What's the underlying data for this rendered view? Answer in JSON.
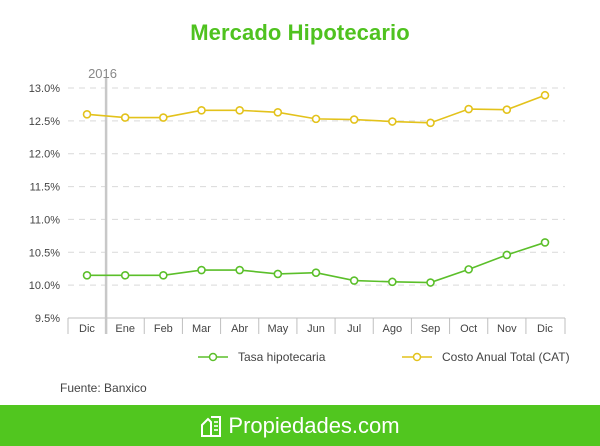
{
  "colors": {
    "accent": "#4fc21f",
    "footer": "#51c61f",
    "tasa": "#5bbf2a",
    "cat": "#e3c21b",
    "grid": "#d9d9d9",
    "axis": "#bfbfbf"
  },
  "brand": {
    "name": "Propiedades.com",
    "icon": "house-document-icon"
  },
  "source": "Fuente: Banxico",
  "chart_data": {
    "type": "line",
    "title": "Mercado Hipotecario",
    "categories": [
      "Dic",
      "Ene",
      "Feb",
      "Mar",
      "Abr",
      "May",
      "Jun",
      "Jul",
      "Ago",
      "Sep",
      "Oct",
      "Nov",
      "Dic"
    ],
    "ylim": [
      9.5,
      13.0
    ],
    "yticks": [
      "9.5%",
      "10.0%",
      "10.5%",
      "11.0%",
      "11.5%",
      "12.0%",
      "12.5%",
      "13.0%"
    ],
    "annotation": {
      "label": "2016",
      "category_index": 1
    },
    "grid": true,
    "legend": "bottom",
    "series": [
      {
        "name": "Tasa hipotecaria",
        "color": "#5bbf2a",
        "values": [
          10.15,
          10.15,
          10.15,
          10.23,
          10.23,
          10.17,
          10.19,
          10.07,
          10.05,
          10.04,
          10.24,
          10.46,
          10.65
        ]
      },
      {
        "name": "Costo Anual Total (CAT)",
        "color": "#e3c21b",
        "values": [
          12.6,
          12.55,
          12.55,
          12.66,
          12.66,
          12.63,
          12.53,
          12.52,
          12.49,
          12.47,
          12.68,
          12.67,
          12.89
        ]
      }
    ]
  }
}
